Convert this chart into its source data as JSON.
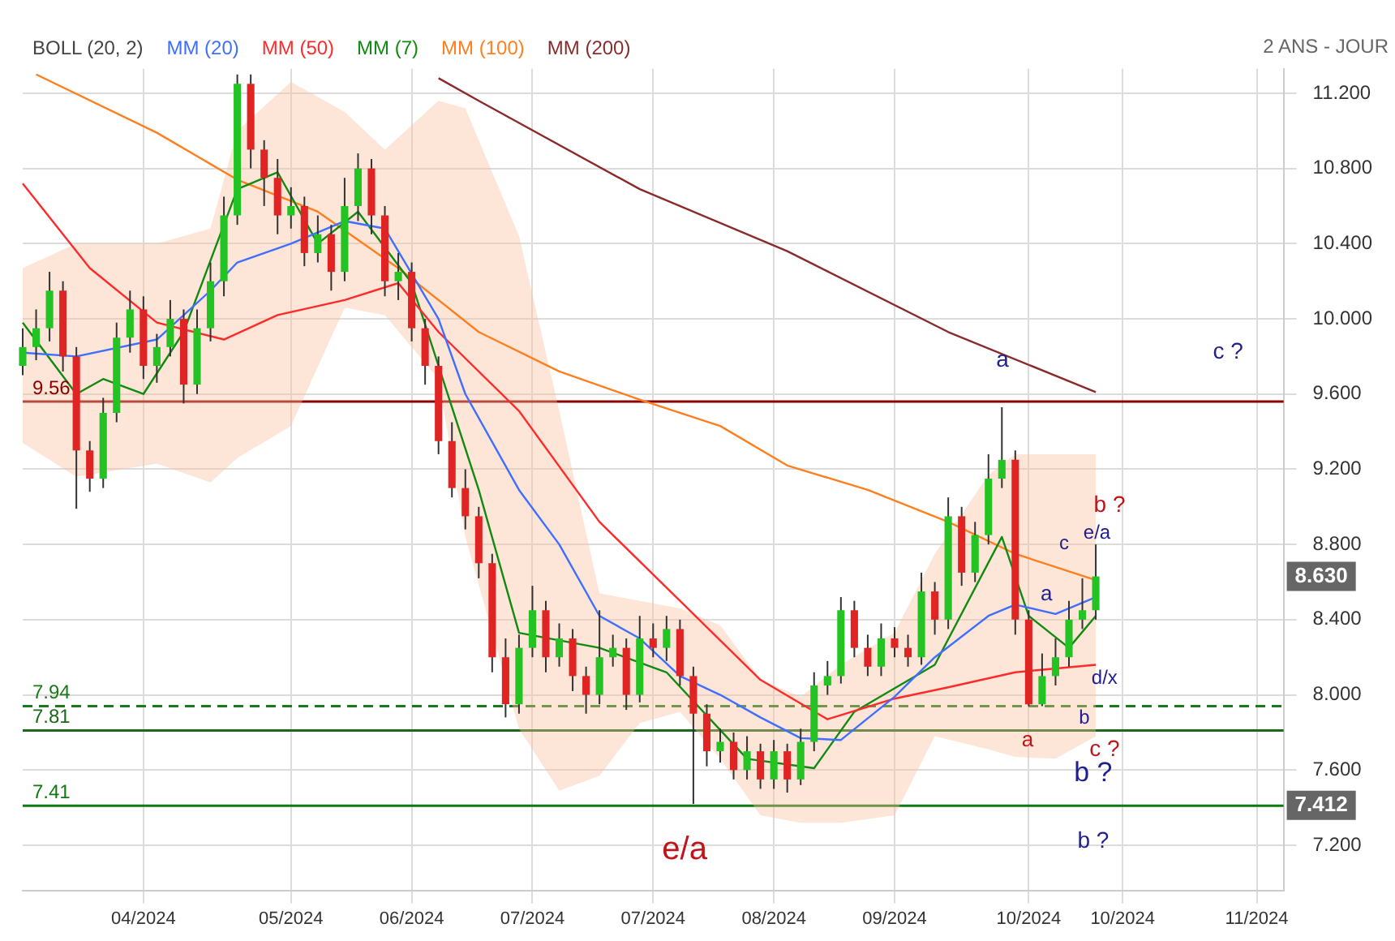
{
  "chart_data": {
    "type": "candlestick",
    "subtitle": "2 ANS - JOUR",
    "legend_title": "BOLL (20, 2)",
    "legend": "top left",
    "grid": true,
    "categories": [
      null,
      null,
      null,
      null,
      null,
      null,
      null,
      null,
      null,
      "04/2024",
      null,
      null,
      null,
      null,
      null,
      null,
      null,
      null,
      null,
      null,
      "05/2024",
      null,
      null,
      null,
      null,
      null,
      null,
      null,
      null,
      "06/2024",
      null,
      null,
      null,
      null,
      null,
      null,
      null,
      null,
      "07/2024",
      null,
      null,
      null,
      null,
      null,
      null,
      null,
      null,
      "07/2024",
      null,
      null,
      null,
      null,
      null,
      null,
      null,
      null,
      "08/2024",
      null,
      null,
      null,
      null,
      null,
      null,
      null,
      null,
      "09/2024",
      null,
      null,
      null,
      null,
      null,
      null,
      null,
      null,
      null,
      "10/2024",
      null,
      null,
      null,
      null,
      null,
      null,
      "10/2024",
      null,
      null,
      null,
      null,
      null,
      null,
      null,
      null,
      null,
      "11/2024",
      null,
      null
    ],
    "ylim": [
      6.96,
      11.33
    ],
    "yticks": [
      {
        "value": 7.2,
        "label": "7.200"
      },
      {
        "value": 7.6,
        "label": "7.600"
      },
      {
        "value": 8.0,
        "label": "8.000"
      },
      {
        "value": 8.4,
        "label": "8.400"
      },
      {
        "value": 8.8,
        "label": "8.800"
      },
      {
        "value": 9.2,
        "label": "9.200"
      },
      {
        "value": 9.6,
        "label": "9.600"
      },
      {
        "value": 10.0,
        "label": "10.000"
      },
      {
        "value": 10.4,
        "label": "10.400"
      },
      {
        "value": 10.8,
        "label": "10.800"
      },
      {
        "value": 11.2,
        "label": "11.200"
      }
    ],
    "ohlc": [
      [
        9.75,
        9.95,
        9.7,
        9.85
      ],
      [
        9.85,
        10.05,
        9.78,
        9.95
      ],
      [
        9.95,
        10.25,
        9.88,
        10.15
      ],
      [
        10.15,
        10.2,
        9.72,
        9.8
      ],
      [
        9.8,
        9.85,
        8.99,
        9.3
      ],
      [
        9.3,
        9.35,
        9.08,
        9.15
      ],
      [
        9.15,
        9.58,
        9.1,
        9.5
      ],
      [
        9.5,
        9.98,
        9.45,
        9.9
      ],
      [
        9.9,
        10.15,
        9.82,
        10.05
      ],
      [
        10.05,
        10.12,
        9.68,
        9.75
      ],
      [
        9.75,
        9.92,
        9.66,
        9.85
      ],
      [
        9.85,
        10.1,
        9.8,
        10.0
      ],
      [
        10.0,
        10.05,
        9.55,
        9.65
      ],
      [
        9.65,
        10.05,
        9.6,
        9.95
      ],
      [
        9.95,
        10.3,
        9.88,
        10.2
      ],
      [
        10.2,
        10.65,
        10.12,
        10.55
      ],
      [
        10.55,
        11.3,
        10.5,
        11.25
      ],
      [
        11.25,
        11.3,
        10.8,
        10.9
      ],
      [
        10.9,
        10.95,
        10.6,
        10.75
      ],
      [
        10.75,
        10.85,
        10.45,
        10.55
      ],
      [
        10.55,
        10.7,
        10.48,
        10.6
      ],
      [
        10.6,
        10.65,
        10.28,
        10.35
      ],
      [
        10.35,
        10.55,
        10.3,
        10.45
      ],
      [
        10.45,
        10.5,
        10.15,
        10.25
      ],
      [
        10.25,
        10.75,
        10.2,
        10.6
      ],
      [
        10.6,
        10.88,
        10.52,
        10.8
      ],
      [
        10.8,
        10.85,
        10.45,
        10.55
      ],
      [
        10.55,
        10.6,
        10.12,
        10.2
      ],
      [
        10.2,
        10.35,
        10.1,
        10.25
      ],
      [
        10.25,
        10.3,
        9.88,
        9.95
      ],
      [
        9.95,
        10.0,
        9.65,
        9.75
      ],
      [
        9.75,
        9.8,
        9.28,
        9.35
      ],
      [
        9.35,
        9.45,
        9.05,
        9.1
      ],
      [
        9.1,
        9.2,
        8.88,
        8.95
      ],
      [
        8.95,
        9.0,
        8.62,
        8.7
      ],
      [
        8.7,
        8.75,
        8.12,
        8.2
      ],
      [
        8.2,
        8.3,
        7.88,
        7.95
      ],
      [
        7.95,
        8.32,
        7.9,
        8.25
      ],
      [
        8.25,
        8.58,
        8.2,
        8.45
      ],
      [
        8.45,
        8.5,
        8.12,
        8.2
      ],
      [
        8.2,
        8.38,
        8.15,
        8.3
      ],
      [
        8.3,
        8.35,
        8.02,
        8.1
      ],
      [
        8.1,
        8.15,
        7.9,
        8.0
      ],
      [
        8.0,
        8.45,
        7.95,
        8.2
      ],
      [
        8.2,
        8.32,
        8.15,
        8.25
      ],
      [
        8.25,
        8.3,
        7.92,
        8.0
      ],
      [
        8.0,
        8.42,
        7.96,
        8.3
      ],
      [
        8.3,
        8.38,
        8.2,
        8.25
      ],
      [
        8.25,
        8.42,
        8.18,
        8.35
      ],
      [
        8.35,
        8.4,
        8.05,
        8.1
      ],
      [
        8.1,
        8.15,
        7.42,
        7.9
      ],
      [
        7.9,
        7.95,
        7.62,
        7.7
      ],
      [
        7.7,
        7.82,
        7.64,
        7.75
      ],
      [
        7.75,
        7.8,
        7.55,
        7.6
      ],
      [
        7.6,
        7.78,
        7.55,
        7.7
      ],
      [
        7.7,
        7.74,
        7.5,
        7.55
      ],
      [
        7.55,
        7.76,
        7.5,
        7.7
      ],
      [
        7.7,
        7.74,
        7.48,
        7.55
      ],
      [
        7.55,
        7.82,
        7.52,
        7.75
      ],
      [
        7.75,
        8.12,
        7.7,
        8.05
      ],
      [
        8.05,
        8.18,
        8.0,
        8.1
      ],
      [
        8.1,
        8.52,
        8.06,
        8.45
      ],
      [
        8.45,
        8.5,
        8.2,
        8.25
      ],
      [
        8.25,
        8.32,
        8.1,
        8.15
      ],
      [
        8.15,
        8.38,
        8.1,
        8.3
      ],
      [
        8.3,
        8.36,
        8.2,
        8.25
      ],
      [
        8.25,
        8.32,
        8.15,
        8.2
      ],
      [
        8.2,
        8.65,
        8.16,
        8.55
      ],
      [
        8.55,
        8.6,
        8.32,
        8.4
      ],
      [
        8.4,
        9.05,
        8.35,
        8.95
      ],
      [
        8.95,
        9.0,
        8.58,
        8.65
      ],
      [
        8.65,
        8.92,
        8.6,
        8.85
      ],
      [
        8.85,
        9.28,
        8.8,
        9.15
      ],
      [
        9.15,
        9.53,
        9.1,
        9.25
      ],
      [
        9.25,
        9.3,
        8.32,
        8.4
      ],
      [
        8.4,
        8.45,
        7.94,
        7.95
      ],
      [
        7.95,
        8.22,
        7.94,
        8.1
      ],
      [
        8.1,
        8.3,
        8.05,
        8.2
      ],
      [
        8.2,
        8.5,
        8.15,
        8.4
      ],
      [
        8.4,
        8.62,
        8.35,
        8.45
      ],
      [
        8.45,
        8.8,
        8.4,
        8.63
      ],
      null,
      null,
      null,
      null,
      null,
      null,
      null,
      null,
      null,
      null,
      null,
      null,
      null,
      null
    ],
    "series": [
      {
        "name": "MM (20)",
        "type": "line",
        "color": "#3f6fff",
        "values": [
          9.82,
          null,
          null,
          null,
          9.8,
          null,
          null,
          null,
          null,
          null,
          9.89,
          null,
          null,
          null,
          10.15,
          null,
          10.3,
          null,
          null,
          null,
          10.4,
          null,
          null,
          null,
          10.52,
          null,
          null,
          10.48,
          null,
          null,
          null,
          10.0,
          null,
          9.6,
          null,
          null,
          null,
          9.09,
          null,
          null,
          8.8,
          null,
          null,
          8.42,
          null,
          null,
          8.3,
          null,
          null,
          8.1,
          null,
          null,
          8.0,
          null,
          null,
          7.88,
          null,
          null,
          7.77,
          null,
          null,
          7.76,
          null,
          null,
          null,
          7.99,
          null,
          null,
          8.2,
          null,
          null,
          null,
          8.42,
          null,
          8.48,
          null,
          null,
          8.43,
          null,
          null,
          8.52,
          null,
          null,
          null,
          null,
          null,
          null,
          null,
          null,
          null,
          null,
          null,
          null,
          null,
          null
        ],
        "lower": [
          9.34,
          null,
          null,
          null,
          9.16,
          null,
          null,
          null,
          null,
          null,
          9.23,
          null,
          null,
          null,
          9.13,
          null,
          9.26,
          null,
          null,
          null,
          9.43,
          null,
          null,
          null,
          10.06,
          null,
          null,
          10.02,
          null,
          null,
          null,
          9.68,
          null,
          8.84,
          null,
          null,
          null,
          7.82,
          null,
          null,
          7.49,
          null,
          null,
          7.57,
          null,
          null,
          7.85,
          null,
          null,
          7.91,
          null,
          null,
          7.66,
          null,
          null,
          7.36,
          null,
          null,
          7.32,
          null,
          null,
          7.32,
          null,
          null,
          null,
          7.36,
          null,
          null,
          7.78,
          null,
          null,
          null,
          7.71,
          null,
          7.67,
          null,
          null,
          7.66,
          null,
          null,
          7.78,
          null,
          null,
          null,
          null,
          null,
          null,
          null,
          null,
          null,
          null,
          null,
          null,
          null,
          null
        ],
        "upper": [
          10.27,
          null,
          null,
          null,
          10.4,
          null,
          null,
          null,
          null,
          null,
          10.4,
          null,
          null,
          null,
          10.48,
          null,
          11.0,
          null,
          null,
          null,
          11.26,
          null,
          null,
          null,
          11.1,
          null,
          null,
          10.9,
          null,
          null,
          null,
          11.16,
          null,
          11.12,
          null,
          null,
          null,
          10.44,
          null,
          null,
          9.51,
          null,
          null,
          8.54,
          null,
          null,
          8.5,
          null,
          null,
          8.46,
          null,
          null,
          8.37,
          null,
          null,
          8.08,
          null,
          null,
          7.99,
          null,
          null,
          8.16,
          null,
          null,
          null,
          8.33,
          null,
          null,
          8.75,
          null,
          null,
          null,
          9.17,
          null,
          9.28,
          null,
          null,
          9.28,
          null,
          null,
          9.28,
          null,
          null,
          null,
          null,
          null,
          null,
          null,
          null,
          null,
          null,
          null,
          null,
          null,
          null
        ]
      },
      {
        "name": "MM (50)",
        "type": "line",
        "color": "#ff2a2a",
        "values": [
          10.72,
          null,
          null,
          null,
          null,
          10.27,
          null,
          null,
          null,
          null,
          9.98,
          null,
          null,
          null,
          null,
          9.89,
          null,
          null,
          null,
          10.02,
          null,
          null,
          null,
          null,
          10.1,
          null,
          null,
          null,
          10.19,
          null,
          null,
          9.93,
          null,
          null,
          null,
          null,
          null,
          9.51,
          null,
          null,
          null,
          null,
          null,
          8.92,
          null,
          null,
          null,
          null,
          null,
          8.5,
          null,
          null,
          null,
          null,
          null,
          8.08,
          null,
          null,
          null,
          null,
          7.87,
          null,
          null,
          null,
          null,
          7.98,
          null,
          null,
          null,
          8.04,
          null,
          null,
          null,
          null,
          8.12,
          null,
          null,
          null,
          null,
          null,
          8.16,
          null,
          null,
          null,
          null,
          null,
          null,
          null,
          null,
          null,
          null,
          null,
          null,
          null,
          null
        ]
      },
      {
        "name": "MM (7)",
        "type": "line",
        "color": "#128a12",
        "values": [
          9.98,
          null,
          null,
          null,
          9.6,
          null,
          9.68,
          null,
          null,
          9.6,
          null,
          null,
          9.93,
          null,
          null,
          null,
          10.69,
          null,
          null,
          10.78,
          null,
          null,
          10.4,
          null,
          null,
          10.57,
          null,
          null,
          null,
          10.19,
          null,
          null,
          null,
          null,
          9.09,
          null,
          null,
          8.33,
          null,
          null,
          null,
          null,
          null,
          8.25,
          null,
          null,
          null,
          null,
          8.12,
          null,
          null,
          null,
          null,
          null,
          7.66,
          null,
          null,
          null,
          null,
          7.61,
          null,
          null,
          7.91,
          null,
          null,
          null,
          null,
          null,
          8.16,
          null,
          null,
          null,
          null,
          8.84,
          null,
          8.42,
          null,
          null,
          8.25,
          null,
          8.42,
          null,
          null,
          null,
          null,
          null,
          null,
          null,
          null,
          null,
          null,
          null,
          null,
          null,
          null
        ]
      },
      {
        "name": "MM (100)",
        "type": "line",
        "color": "#ff7f1e",
        "values": [
          null,
          11.3,
          null,
          null,
          null,
          null,
          null,
          null,
          null,
          null,
          10.99,
          null,
          null,
          null,
          null,
          null,
          10.74,
          null,
          null,
          null,
          null,
          null,
          10.57,
          null,
          null,
          null,
          null,
          null,
          10.27,
          null,
          null,
          null,
          null,
          null,
          9.93,
          null,
          null,
          null,
          null,
          null,
          9.72,
          null,
          null,
          null,
          null,
          null,
          9.57,
          null,
          null,
          null,
          null,
          null,
          9.43,
          null,
          null,
          null,
          null,
          9.22,
          null,
          null,
          null,
          null,
          null,
          9.09,
          null,
          null,
          null,
          null,
          null,
          8.92,
          null,
          null,
          null,
          null,
          8.75,
          null,
          null,
          null,
          null,
          null,
          8.61,
          null,
          null,
          null,
          null,
          null,
          null,
          null,
          null,
          null,
          null,
          null,
          null,
          null,
          null
        ]
      },
      {
        "name": "MM (200)",
        "type": "line",
        "color": "#8b2a2a",
        "values": [
          null,
          null,
          null,
          null,
          null,
          null,
          null,
          null,
          null,
          null,
          null,
          null,
          null,
          null,
          null,
          null,
          null,
          null,
          null,
          null,
          null,
          null,
          null,
          null,
          null,
          null,
          null,
          null,
          null,
          null,
          null,
          11.28,
          null,
          null,
          11.16,
          null,
          null,
          null,
          null,
          null,
          null,
          null,
          null,
          null,
          null,
          null,
          10.69,
          null,
          null,
          null,
          null,
          null,
          null,
          null,
          null,
          null,
          null,
          10.36,
          null,
          null,
          null,
          null,
          null,
          null,
          null,
          null,
          null,
          null,
          null,
          9.93,
          null,
          null,
          null,
          null,
          null,
          null,
          null,
          null,
          null,
          null,
          9.61,
          null,
          null,
          null,
          null,
          null,
          null,
          null,
          null,
          null,
          null,
          null,
          null,
          null,
          null
        ]
      }
    ],
    "ref_lines": [
      {
        "axis": "y",
        "value": 9.56,
        "label": "9.56",
        "color": "#8b0000"
      },
      {
        "axis": "y",
        "value": 7.94,
        "label": "7.94",
        "color": "#1a7a1a",
        "line_style": "dashed"
      },
      {
        "axis": "y",
        "value": 7.81,
        "label": "7.81",
        "color": "#1a6a1a"
      },
      {
        "axis": "y",
        "value": 7.41,
        "label": "7.41",
        "color": "#0f7a0f"
      }
    ],
    "annotations": [
      {
        "text": "8.630",
        "y": 8.63
      },
      {
        "text": "7.412",
        "y": 7.412
      },
      "a",
      "c ?",
      "b ?",
      "e/a",
      "c",
      "a",
      "d/x",
      "b",
      "a",
      "c ?",
      "b ?",
      "b ?",
      "e/a"
    ]
  }
}
